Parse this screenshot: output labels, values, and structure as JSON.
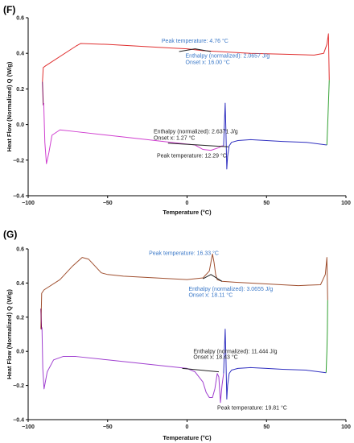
{
  "chart_data": [
    {
      "type": "line",
      "panel_label": "(F)",
      "xlabel": "Temperature (°C)",
      "ylabel": "Heat Flow (Normalized) Q (W/g)",
      "xlim": [
        -100,
        100
      ],
      "ylim": [
        -0.4,
        0.6
      ],
      "x_ticks": [
        -100,
        -50,
        0,
        50,
        100
      ],
      "x_tick_labels": [
        "−100",
        "−50",
        "0",
        "50",
        "100"
      ],
      "y_ticks": [
        -0.4,
        -0.2,
        0.0,
        0.2,
        0.4,
        0.6
      ],
      "y_tick_labels": [
        "−0.4",
        "−0.2",
        "0.0",
        "0.2",
        "0.4",
        "0.6"
      ],
      "grid": false,
      "series": [
        {
          "color": "#e03030",
          "x": [
            -91,
            -90.5,
            -89,
            -70,
            -67,
            -50,
            -30,
            -10,
            0,
            5,
            10,
            20,
            40,
            60,
            80,
            86,
            88,
            89,
            89.5
          ],
          "y": [
            0.24,
            0.32,
            0.33,
            0.44,
            0.455,
            0.45,
            0.44,
            0.43,
            0.425,
            0.42,
            0.415,
            0.41,
            0.4,
            0.395,
            0.39,
            0.4,
            0.45,
            0.51,
            0.25
          ]
        },
        {
          "color": "#7a0050",
          "x": [
            -91,
            -90.5,
            -90.2
          ],
          "y": [
            0.24,
            0.11,
            0.12
          ]
        },
        {
          "color": "#d040d0",
          "x": [
            -90.2,
            -89.5,
            -88.5,
            -87,
            -85,
            -80,
            -70,
            -50,
            -30,
            -10,
            0,
            5,
            10,
            15,
            20,
            22,
            23
          ],
          "y": [
            0.12,
            -0.1,
            -0.22,
            -0.16,
            -0.06,
            -0.03,
            -0.04,
            -0.06,
            -0.08,
            -0.1,
            -0.11,
            -0.115,
            -0.14,
            -0.145,
            -0.13,
            -0.12,
            -0.12
          ]
        },
        {
          "color": "#3030c0",
          "x": [
            23,
            24,
            24.5,
            25,
            25.5,
            26.5,
            28,
            32,
            40,
            50,
            60,
            75,
            88
          ],
          "y": [
            -0.12,
            0.12,
            -0.05,
            -0.25,
            -0.18,
            -0.12,
            -0.1,
            -0.09,
            -0.085,
            -0.09,
            -0.095,
            -0.1,
            -0.115
          ]
        },
        {
          "color": "#30a030",
          "x": [
            88,
            88.5,
            89,
            89.5
          ],
          "y": [
            -0.115,
            0.0,
            0.12,
            0.25
          ]
        },
        {
          "color": "#222222",
          "x": [
            -5,
            5,
            15
          ],
          "y": [
            0.41,
            0.425,
            0.41
          ]
        },
        {
          "color": "#222222",
          "x": [
            -12,
            26
          ],
          "y": [
            -0.105,
            -0.125
          ]
        }
      ],
      "annotations": [
        {
          "text": "Peak temperature: 4.76 °C",
          "x": 5,
          "y": 0.46,
          "color": "#3a78c8",
          "anchor": "center"
        },
        {
          "text": "Enthalpy (normalized): 2.0657 J/g",
          "x": -1,
          "y": 0.375,
          "color": "#3a78c8",
          "anchor": "start"
        },
        {
          "text": "Onset x: 16.00 °C",
          "x": -1,
          "y": 0.34,
          "color": "#3a78c8",
          "anchor": "start"
        },
        {
          "text": "Enthalpy (normalized): 2.6371 J/g",
          "x": -21,
          "y": -0.05,
          "color": "#222222",
          "anchor": "start"
        },
        {
          "text": "Onset x: 1.27 °C",
          "x": -21,
          "y": -0.085,
          "color": "#222222",
          "anchor": "start"
        },
        {
          "text": "Peak temperature: 12.29 °C",
          "x": -19,
          "y": -0.185,
          "color": "#222222",
          "anchor": "start"
        }
      ]
    },
    {
      "type": "line",
      "panel_label": "(G)",
      "xlabel": "Temperature (°C)",
      "ylabel": "Heat Flow (Normalized) Q (W/g)",
      "xlim": [
        -100,
        100
      ],
      "ylim": [
        -0.4,
        0.6
      ],
      "x_ticks": [
        -100,
        -50,
        0,
        50,
        100
      ],
      "x_tick_labels": [
        "−100",
        "−50",
        "0",
        "50",
        "100"
      ],
      "y_ticks": [
        -0.4,
        -0.2,
        0.0,
        0.2,
        0.4,
        0.6
      ],
      "y_tick_labels": [
        "−0.4",
        "−0.2",
        "0.0",
        "0.2",
        "0.4",
        "0.6"
      ],
      "grid": false,
      "series": [
        {
          "color": "#a05030",
          "x": [
            -92,
            -91.5,
            -90,
            -80,
            -72,
            -66,
            -62,
            -58,
            -54,
            -50,
            -40,
            -20,
            0,
            10,
            14,
            16,
            17,
            18,
            19,
            22,
            30,
            50,
            70,
            84,
            87,
            88,
            88.5
          ],
          "y": [
            0.13,
            0.34,
            0.36,
            0.42,
            0.5,
            0.55,
            0.54,
            0.5,
            0.46,
            0.45,
            0.44,
            0.43,
            0.42,
            0.43,
            0.47,
            0.57,
            0.52,
            0.45,
            0.42,
            0.41,
            0.405,
            0.395,
            0.385,
            0.39,
            0.45,
            0.55,
            0.3
          ]
        },
        {
          "color": "#7a0050",
          "x": [
            -92,
            -91.6,
            -91.3
          ],
          "y": [
            0.25,
            0.13,
            0.14
          ]
        },
        {
          "color": "#a040d0",
          "x": [
            -91.3,
            -90.8,
            -90,
            -88,
            -84,
            -78,
            -70,
            -50,
            -30,
            -10,
            0,
            5,
            10,
            12,
            14,
            16,
            17.5,
            19,
            20,
            21,
            22,
            23
          ],
          "y": [
            0.14,
            -0.1,
            -0.22,
            -0.12,
            -0.05,
            -0.03,
            -0.03,
            -0.05,
            -0.07,
            -0.09,
            -0.1,
            -0.12,
            -0.18,
            -0.24,
            -0.27,
            -0.27,
            -0.22,
            -0.13,
            -0.15,
            -0.3,
            -0.2,
            -0.13
          ]
        },
        {
          "color": "#3030c0",
          "x": [
            23,
            24,
            24.5,
            25,
            25.5,
            26.5,
            28,
            32,
            40,
            50,
            60,
            75,
            87.5
          ],
          "y": [
            -0.13,
            0.13,
            -0.05,
            -0.28,
            -0.2,
            -0.13,
            -0.11,
            -0.1,
            -0.095,
            -0.1,
            -0.105,
            -0.11,
            -0.125
          ]
        },
        {
          "color": "#30a030",
          "x": [
            87.5,
            88,
            88.3,
            88.5
          ],
          "y": [
            -0.125,
            0.0,
            0.12,
            0.3
          ]
        },
        {
          "color": "#222222",
          "x": [
            -3,
            20
          ],
          "y": [
            -0.1,
            -0.12
          ]
        },
        {
          "color": "#222222",
          "x": [
            10,
            15,
            22
          ],
          "y": [
            0.425,
            0.45,
            0.41
          ]
        }
      ],
      "annotations": [
        {
          "text": "Peak temperature: 16.33 °C",
          "x": -24,
          "y": 0.565,
          "color": "#3a78c8",
          "anchor": "start"
        },
        {
          "text": "Enthalpy (normalized): 3.0655 J/g",
          "x": 1,
          "y": 0.355,
          "color": "#3a78c8",
          "anchor": "start"
        },
        {
          "text": "Onset x: 18.11 °C",
          "x": 1,
          "y": 0.32,
          "color": "#3a78c8",
          "anchor": "start"
        },
        {
          "text": "Enthalpy (normalized): 11.444 J/g",
          "x": 4,
          "y": -0.01,
          "color": "#222222",
          "anchor": "start"
        },
        {
          "text": "Onset x: 18.43 °C",
          "x": 4,
          "y": -0.045,
          "color": "#222222",
          "anchor": "start"
        },
        {
          "text": "Peak temperature: 19.81 °C",
          "x": 19,
          "y": -0.34,
          "color": "#222222",
          "anchor": "start"
        }
      ]
    }
  ]
}
